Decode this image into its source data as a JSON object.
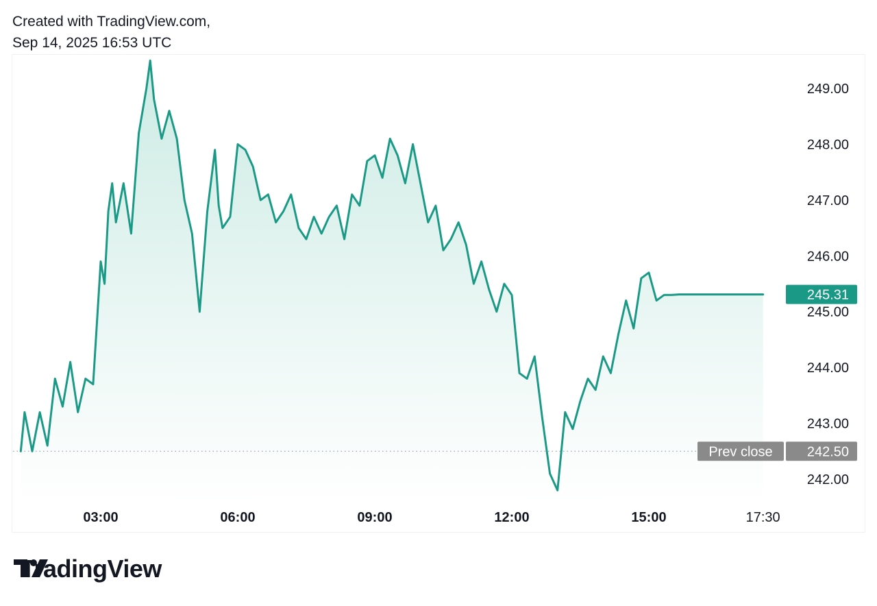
{
  "header": {
    "line1": "Created with TradingView.com,",
    "line2": "Sep 14, 2025 16:53 UTC"
  },
  "brand": {
    "name": "TradingView",
    "logo_icon": "tradingview-logo-icon"
  },
  "colors": {
    "line": "#1a9a86",
    "fill_top": "#cdebe4",
    "fill_bottom": "#ffffff",
    "last_price_badge": "#1a9a86",
    "prev_close_badge": "#8a8a8a",
    "axis_text": "#131722"
  },
  "chart_data": {
    "type": "area",
    "title": "",
    "xlabel": "",
    "ylabel": "",
    "x_ticks": [
      "03:00",
      "06:00",
      "09:00",
      "12:00",
      "15:00",
      "17:30"
    ],
    "y_ticks": [
      "242.00",
      "243.00",
      "244.00",
      "245.00",
      "246.00",
      "247.00",
      "248.00",
      "249.00"
    ],
    "ylim": [
      241.6,
      249.6
    ],
    "x_range": [
      "01:15",
      "17:30"
    ],
    "grid": false,
    "last_price": {
      "label": "245.31",
      "value": 245.31
    },
    "prev_close": {
      "label": "Prev close",
      "value_label": "242.50",
      "value": 242.5
    },
    "series": [
      {
        "x": [
          "01:15",
          "01:20",
          "01:30",
          "01:40",
          "01:50",
          "02:00",
          "02:10",
          "02:20",
          "02:30",
          "02:40",
          "02:50",
          "03:00",
          "03:05",
          "03:10",
          "03:15",
          "03:20",
          "03:30",
          "03:40",
          "03:50",
          "04:00",
          "04:05",
          "04:10",
          "04:20",
          "04:30",
          "04:40",
          "04:50",
          "05:00",
          "05:10",
          "05:20",
          "05:30",
          "05:35",
          "05:40",
          "05:50",
          "06:00",
          "06:10",
          "06:20",
          "06:30",
          "06:40",
          "06:50",
          "07:00",
          "07:10",
          "07:20",
          "07:30",
          "07:40",
          "07:50",
          "08:00",
          "08:10",
          "08:20",
          "08:30",
          "08:40",
          "08:50",
          "09:00",
          "09:10",
          "09:20",
          "09:30",
          "09:40",
          "09:50",
          "10:00",
          "10:10",
          "10:20",
          "10:30",
          "10:40",
          "10:50",
          "11:00",
          "11:10",
          "11:20",
          "11:30",
          "11:40",
          "11:50",
          "12:00",
          "12:10",
          "12:20",
          "12:30",
          "12:40",
          "12:50",
          "13:00",
          "13:10",
          "13:20",
          "13:30",
          "13:40",
          "13:50",
          "14:00",
          "14:10",
          "14:20",
          "14:30",
          "14:40",
          "14:50",
          "15:00",
          "15:10",
          "15:20",
          "15:30",
          "15:40",
          "15:45",
          "15:50",
          "16:00",
          "16:10",
          "16:20",
          "16:30",
          "16:40",
          "16:50",
          "17:00",
          "17:10",
          "17:20",
          "17:30"
        ],
        "values": [
          242.5,
          243.2,
          242.5,
          243.2,
          242.6,
          243.8,
          243.3,
          244.1,
          243.2,
          243.8,
          243.7,
          245.9,
          245.5,
          246.8,
          247.3,
          246.6,
          247.3,
          246.4,
          248.2,
          249.0,
          249.5,
          248.8,
          248.1,
          248.6,
          248.1,
          247.0,
          246.4,
          245.0,
          246.8,
          247.9,
          246.9,
          246.5,
          246.7,
          248.0,
          247.9,
          247.6,
          247.0,
          247.1,
          246.6,
          246.8,
          247.1,
          246.5,
          246.3,
          246.7,
          246.4,
          246.7,
          246.9,
          246.3,
          247.1,
          246.9,
          247.7,
          247.8,
          247.4,
          248.1,
          247.8,
          247.3,
          248.0,
          247.3,
          246.6,
          246.9,
          246.1,
          246.3,
          246.6,
          246.2,
          245.5,
          245.9,
          245.4,
          245.0,
          245.5,
          245.3,
          243.9,
          243.8,
          244.2,
          243.1,
          242.1,
          241.8,
          243.2,
          242.9,
          243.4,
          243.8,
          243.6,
          244.2,
          243.9,
          244.6,
          245.2,
          244.7,
          245.6,
          245.7,
          245.2,
          245.3,
          245.3,
          245.31,
          245.31,
          245.31,
          245.31,
          245.31,
          245.31,
          245.31,
          245.31,
          245.31,
          245.31,
          245.31,
          245.31,
          245.31
        ]
      }
    ]
  }
}
